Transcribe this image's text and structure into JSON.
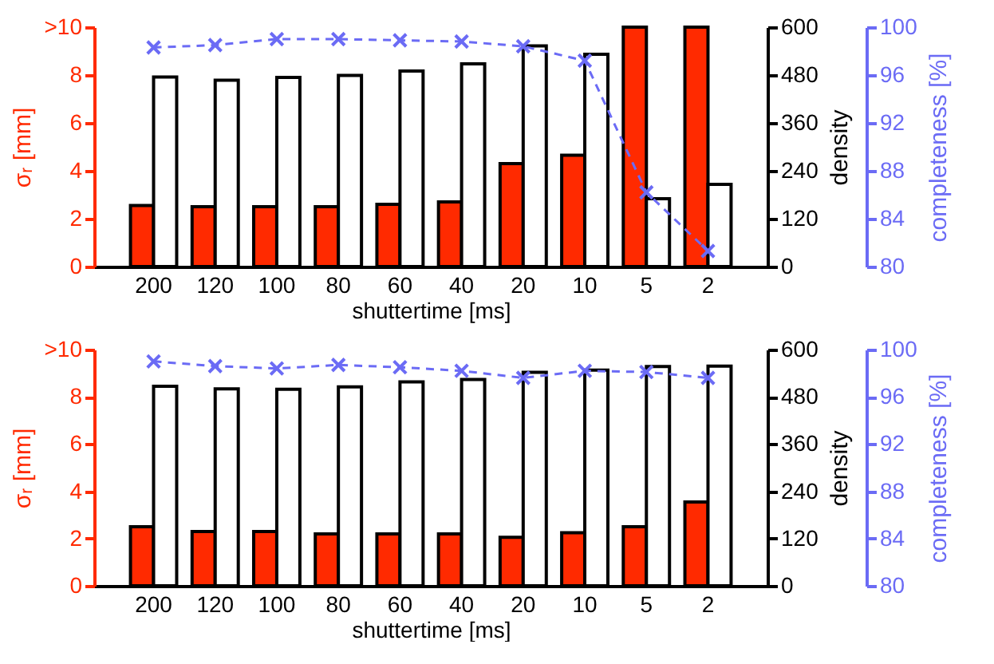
{
  "chart_data": [
    {
      "type": "bar",
      "categories": [
        "200",
        "120",
        "100",
        "80",
        "60",
        "40",
        "20",
        "10",
        "5",
        "2"
      ],
      "xlabel": "shuttertime [ms]",
      "ylabel": "σᵣ [mm]",
      "y2label": "density",
      "y3label": "completeness [%]",
      "ylim": [
        0,
        10
      ],
      "yticks": [
        0,
        2,
        4,
        6,
        8,
        {
          "value": 10,
          "label": ">10"
        }
      ],
      "y2lim": [
        0,
        600
      ],
      "y2ticks": [
        0,
        120,
        240,
        360,
        480,
        600
      ],
      "y3lim": [
        80,
        100
      ],
      "y3ticks": [
        80,
        84,
        88,
        92,
        96,
        100
      ],
      "marker": "cross",
      "line_style": "dashed",
      "series": [
        {
          "color": "#ff2a00",
          "values": [
            2.55,
            2.5,
            2.5,
            2.5,
            2.6,
            2.7,
            4.3,
            4.65,
            10,
            10
          ]
        },
        {
          "color": "#ffffff",
          "axis": "y2",
          "values": [
            475,
            467,
            474,
            479,
            490,
            508,
            553,
            532,
            170,
            206
          ]
        },
        {
          "type": "line",
          "color": "#6b6bf5",
          "axis": "y3",
          "values": [
            98.3,
            98.5,
            99.0,
            99.0,
            98.9,
            98.8,
            98.4,
            97.2,
            86.2,
            81.3
          ]
        }
      ]
    },
    {
      "type": "bar",
      "categories": [
        "200",
        "120",
        "100",
        "80",
        "60",
        "40",
        "20",
        "10",
        "5",
        "2"
      ],
      "xlabel": "shuttertime [ms]",
      "ylabel": "σᵣ [mm]",
      "y2label": "density",
      "y3label": "completeness [%]",
      "ylim": [
        0,
        10
      ],
      "yticks": [
        0,
        2,
        4,
        6,
        8,
        {
          "value": 10,
          "label": ">10"
        }
      ],
      "y2lim": [
        0,
        600
      ],
      "y2ticks": [
        0,
        120,
        240,
        360,
        480,
        600
      ],
      "y3lim": [
        80,
        100
      ],
      "y3ticks": [
        80,
        84,
        88,
        92,
        96,
        100
      ],
      "marker": "cross",
      "line_style": "dashed",
      "series": [
        {
          "color": "#ff2a00",
          "values": [
            2.5,
            2.3,
            2.3,
            2.2,
            2.2,
            2.2,
            2.05,
            2.25,
            2.5,
            3.55
          ]
        },
        {
          "color": "#ffffff",
          "axis": "y2",
          "values": [
            507,
            500,
            499,
            505,
            518,
            524,
            542,
            548,
            557,
            558
          ]
        },
        {
          "type": "line",
          "color": "#6b6bf5",
          "axis": "y3",
          "values": [
            99.0,
            98.6,
            98.4,
            98.7,
            98.5,
            98.2,
            97.6,
            98.2,
            98.1,
            97.6
          ]
        }
      ]
    }
  ]
}
